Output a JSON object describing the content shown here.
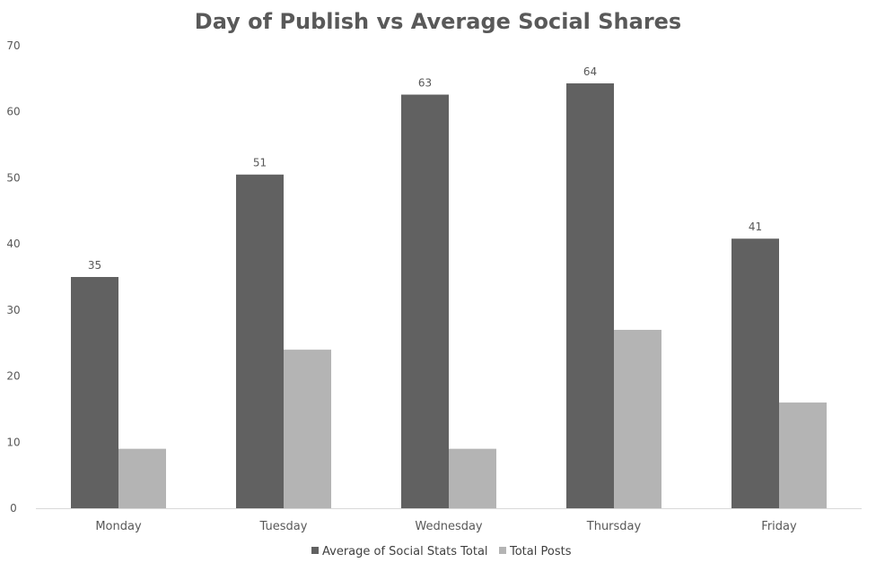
{
  "chart_data": {
    "type": "bar",
    "title": "Day of Publish vs Average Social Shares",
    "categories": [
      "Monday",
      "Tuesday",
      "Wednesday",
      "Thursday",
      "Friday"
    ],
    "series": [
      {
        "name": "Average of Social Stats Total",
        "values": [
          35,
          50.5,
          62.6,
          64.3,
          40.8
        ],
        "data_labels": [
          "35",
          "51",
          "63",
          "64",
          "41"
        ],
        "color": "#616161"
      },
      {
        "name": "Total Posts",
        "values": [
          9,
          24,
          9,
          27,
          16
        ],
        "color": "#b4b4b4"
      }
    ],
    "ylim": [
      0,
      70
    ],
    "yticks": [
      "0",
      "10",
      "20",
      "30",
      "40",
      "50",
      "60",
      "70"
    ],
    "ytick_values": [
      0,
      10,
      20,
      30,
      40,
      50,
      60,
      70
    ],
    "xlabel": "",
    "ylabel": "",
    "grid": false,
    "legend_position": "bottom"
  }
}
